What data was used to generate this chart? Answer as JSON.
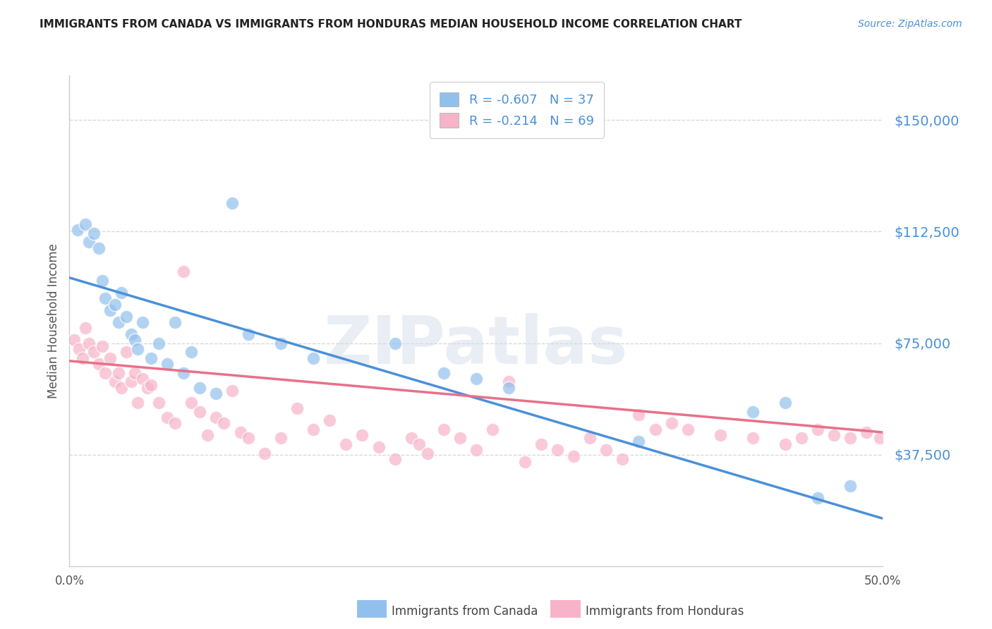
{
  "title": "IMMIGRANTS FROM CANADA VS IMMIGRANTS FROM HONDURAS MEDIAN HOUSEHOLD INCOME CORRELATION CHART",
  "source": "Source: ZipAtlas.com",
  "ylabel": "Median Household Income",
  "ytick_labels": [
    "$37,500",
    "$75,000",
    "$112,500",
    "$150,000"
  ],
  "ytick_values": [
    37500,
    75000,
    112500,
    150000
  ],
  "ylim": [
    0,
    165000
  ],
  "xlim": [
    0.0,
    0.5
  ],
  "xtick_values": [
    0.0,
    0.1,
    0.2,
    0.3,
    0.4,
    0.5
  ],
  "xtick_labels": [
    "0.0%",
    "",
    "",
    "",
    "",
    "50.0%"
  ],
  "legend_canada_R": "-0.607",
  "legend_canada_N": "37",
  "legend_honduras_R": "-0.214",
  "legend_honduras_N": "69",
  "watermark": "ZIPatlas",
  "canada_color": "#92C0ED",
  "honduras_color": "#F7B3C8",
  "canada_line_color": "#4A90D9",
  "honduras_line_color": "#E8708A",
  "title_color": "#333333",
  "ytick_color": "#4A90D9",
  "grid_color": "#CCCCCC",
  "legend_R_color": "#E8508A",
  "legend_N_color": "#4A90D9",
  "canada_scatter_x": [
    0.005,
    0.01,
    0.012,
    0.015,
    0.018,
    0.02,
    0.022,
    0.025,
    0.028,
    0.03,
    0.032,
    0.035,
    0.038,
    0.04,
    0.042,
    0.045,
    0.05,
    0.055,
    0.06,
    0.065,
    0.07,
    0.075,
    0.08,
    0.09,
    0.1,
    0.11,
    0.13,
    0.15,
    0.2,
    0.23,
    0.25,
    0.27,
    0.35,
    0.42,
    0.44,
    0.46,
    0.48
  ],
  "canada_scatter_y": [
    113000,
    115000,
    109000,
    112000,
    107000,
    96000,
    90000,
    86000,
    88000,
    82000,
    92000,
    84000,
    78000,
    76000,
    73000,
    82000,
    70000,
    75000,
    68000,
    82000,
    65000,
    72000,
    60000,
    58000,
    122000,
    78000,
    75000,
    70000,
    75000,
    65000,
    63000,
    60000,
    42000,
    52000,
    55000,
    23000,
    27000
  ],
  "honduras_scatter_x": [
    0.003,
    0.006,
    0.008,
    0.01,
    0.012,
    0.015,
    0.018,
    0.02,
    0.022,
    0.025,
    0.028,
    0.03,
    0.032,
    0.035,
    0.038,
    0.04,
    0.042,
    0.045,
    0.048,
    0.05,
    0.055,
    0.06,
    0.065,
    0.07,
    0.075,
    0.08,
    0.085,
    0.09,
    0.095,
    0.1,
    0.105,
    0.11,
    0.12,
    0.13,
    0.14,
    0.15,
    0.16,
    0.17,
    0.18,
    0.19,
    0.2,
    0.21,
    0.215,
    0.22,
    0.23,
    0.24,
    0.25,
    0.26,
    0.27,
    0.28,
    0.29,
    0.3,
    0.31,
    0.32,
    0.33,
    0.34,
    0.35,
    0.36,
    0.37,
    0.38,
    0.4,
    0.42,
    0.44,
    0.45,
    0.46,
    0.47,
    0.48,
    0.49,
    0.498
  ],
  "honduras_scatter_y": [
    76000,
    73000,
    70000,
    80000,
    75000,
    72000,
    68000,
    74000,
    65000,
    70000,
    62000,
    65000,
    60000,
    72000,
    62000,
    65000,
    55000,
    63000,
    60000,
    61000,
    55000,
    50000,
    48000,
    99000,
    55000,
    52000,
    44000,
    50000,
    48000,
    59000,
    45000,
    43000,
    38000,
    43000,
    53000,
    46000,
    49000,
    41000,
    44000,
    40000,
    36000,
    43000,
    41000,
    38000,
    46000,
    43000,
    39000,
    46000,
    62000,
    35000,
    41000,
    39000,
    37000,
    43000,
    39000,
    36000,
    51000,
    46000,
    48000,
    46000,
    44000,
    43000,
    41000,
    43000,
    46000,
    44000,
    43000,
    45000,
    43000
  ],
  "background_color": "#FFFFFF",
  "canada_line_x": [
    0.0,
    0.5
  ],
  "canada_line_y": [
    97000,
    16000
  ],
  "honduras_line_x": [
    0.0,
    0.5
  ],
  "honduras_line_y": [
    69000,
    45000
  ]
}
